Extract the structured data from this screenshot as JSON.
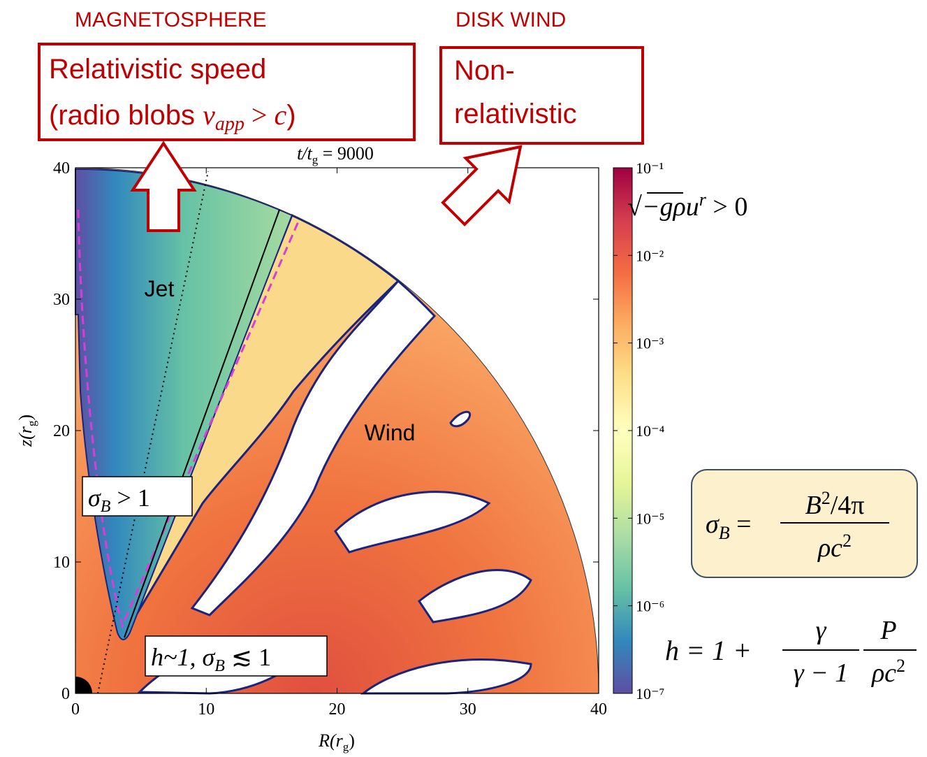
{
  "chart_data": {
    "type": "heatmap",
    "title": [
      "t/t",
      "g",
      " = 9000"
    ],
    "xlabel": [
      "R(r",
      "g",
      ")"
    ],
    "ylabel": [
      "z(r",
      "g",
      ")"
    ],
    "xlim": [
      0,
      40
    ],
    "ylim": [
      0,
      40
    ],
    "xticks": [
      0,
      10,
      20,
      30,
      40
    ],
    "yticks": [
      0,
      10,
      20,
      30,
      40
    ],
    "regions": [
      "Jet",
      "Wind"
    ],
    "colorbar": {
      "scale": "log",
      "lim": [
        1e-07,
        0.1
      ],
      "ticks": [
        {
          "value": 0.1,
          "label": "10⁻¹"
        },
        {
          "value": 0.01,
          "label": "10⁻²"
        },
        {
          "value": 0.001,
          "label": "10⁻³"
        },
        {
          "value": 0.0001,
          "label": "10⁻⁴"
        },
        {
          "value": 1e-05,
          "label": "10⁻⁵"
        },
        {
          "value": 1e-06,
          "label": "10⁻⁶"
        },
        {
          "value": 1e-07,
          "label": "10⁻⁷"
        }
      ],
      "label": [
        "√",
        "−g",
        "ρu",
        "r",
        " > 0"
      ],
      "colors": [
        "#5e4fa2",
        "#3288bd",
        "#66c2a5",
        "#abdda4",
        "#e6f598",
        "#ffffbf",
        "#fee08b",
        "#fdae61",
        "#f46d43",
        "#d53e4f",
        "#9e0142"
      ]
    }
  },
  "annotations": {
    "magnetosphere": {
      "label": "MAGNETOSPHERE",
      "line1": "Relativistic speed",
      "line2": [
        "(radio blobs ",
        "v",
        "app",
        " > ",
        "c",
        ")"
      ]
    },
    "disk_wind": {
      "label": "DISK WIND",
      "lines": [
        "Non-",
        "relativistic"
      ]
    },
    "sigma_gt": [
      "σ",
      "B",
      " > 1"
    ],
    "h_sim": [
      "h~1, σ",
      "B",
      " ≲ 1"
    ],
    "sigma_def": {
      "lhs": [
        "σ",
        "B",
        " ="
      ],
      "num": [
        "B",
        "2",
        "/4π"
      ],
      "den": [
        "ρc",
        "2"
      ]
    },
    "h_def": {
      "lhs": "h = 1 +",
      "num1": "γ",
      "den1": "γ − 1",
      "num2": "P",
      "den2": [
        "ρc",
        "2"
      ]
    }
  }
}
